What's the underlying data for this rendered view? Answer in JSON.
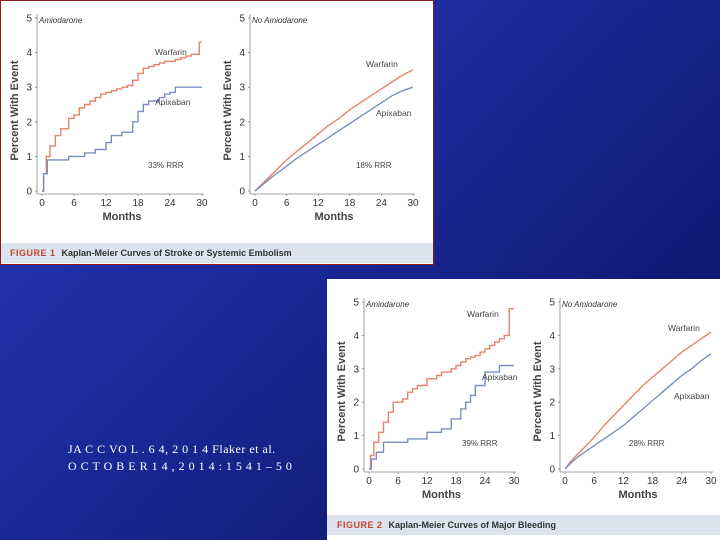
{
  "colors": {
    "warfarin": "#e8836a",
    "apixaban": "#7b8fbf",
    "caption_label": "#c8432b"
  },
  "figure1": {
    "label": "FIGURE 1",
    "title": "Kaplan-Meier Curves of Stroke or Systemic Embolism"
  },
  "figure2": {
    "label": "FIGURE 2",
    "title": "Kaplan-Meier Curves of Major Bleeding"
  },
  "citation": {
    "line1": "JA C C VO L . 6 4, 2 0 1 4 Flaker et al.",
    "line2": "O C T O B E R 1 4 , 2 0 1 4 : 1 5 4 1 – 5 0"
  },
  "chart_data": [
    {
      "type": "line",
      "figure": "figure1",
      "panel": "Amiodarone",
      "xlabel": "Months",
      "ylabel": "Percent With Event",
      "xlim": [
        0,
        30
      ],
      "ylim": [
        0,
        5
      ],
      "xticks": [
        0,
        6,
        12,
        18,
        24,
        30
      ],
      "yticks": [
        0,
        1,
        2,
        3,
        4,
        5
      ],
      "annotation": "33% RRR",
      "series": [
        {
          "name": "Warfarin",
          "step": true,
          "x": [
            0,
            0.3,
            0.8,
            1.5,
            2.5,
            3.5,
            5,
            6,
            7,
            8,
            9,
            10,
            11,
            12,
            13,
            14,
            15,
            16,
            17,
            18,
            19,
            20,
            21,
            22,
            23,
            24,
            25,
            26,
            27,
            28,
            29,
            29.5,
            30
          ],
          "y": [
            0,
            0.5,
            1.0,
            1.3,
            1.6,
            1.8,
            2.1,
            2.2,
            2.4,
            2.5,
            2.6,
            2.7,
            2.8,
            2.85,
            2.9,
            2.95,
            3.0,
            3.05,
            3.2,
            3.4,
            3.55,
            3.6,
            3.65,
            3.7,
            3.75,
            3.75,
            3.8,
            3.85,
            3.9,
            3.95,
            3.95,
            4.3,
            4.3
          ]
        },
        {
          "name": "Apixaban",
          "step": true,
          "x": [
            0,
            0.3,
            1.0,
            2.5,
            5,
            8,
            10,
            12,
            13,
            15,
            17,
            18,
            19,
            20,
            22,
            23,
            24,
            25,
            27,
            30
          ],
          "y": [
            0,
            0.5,
            0.9,
            0.9,
            1.0,
            1.1,
            1.2,
            1.4,
            1.6,
            1.7,
            2.0,
            2.3,
            2.5,
            2.6,
            2.7,
            2.8,
            2.85,
            3.0,
            3.0,
            3.0
          ]
        }
      ]
    },
    {
      "type": "line",
      "figure": "figure1",
      "panel": "No Amiodarone",
      "xlabel": "Months",
      "ylabel": "Percent With Event",
      "xlim": [
        0,
        30
      ],
      "ylim": [
        0,
        5
      ],
      "xticks": [
        0,
        6,
        12,
        18,
        24,
        30
      ],
      "yticks": [
        0,
        1,
        2,
        3,
        4,
        5
      ],
      "annotation": "18% RRR",
      "series": [
        {
          "name": "Warfarin",
          "x": [
            0,
            1,
            2,
            3,
            4,
            5,
            6,
            8,
            10,
            12,
            14,
            16,
            18,
            20,
            22,
            24,
            26,
            28,
            30
          ],
          "y": [
            0,
            0.15,
            0.3,
            0.45,
            0.6,
            0.75,
            0.9,
            1.15,
            1.4,
            1.65,
            1.9,
            2.1,
            2.35,
            2.55,
            2.75,
            2.95,
            3.15,
            3.35,
            3.5
          ]
        },
        {
          "name": "Apixaban",
          "x": [
            0,
            1,
            2,
            3,
            4,
            5,
            6,
            8,
            10,
            12,
            14,
            16,
            18,
            20,
            22,
            24,
            26,
            28,
            30
          ],
          "y": [
            0,
            0.12,
            0.25,
            0.38,
            0.5,
            0.6,
            0.72,
            0.95,
            1.15,
            1.35,
            1.55,
            1.75,
            1.95,
            2.15,
            2.35,
            2.55,
            2.75,
            2.9,
            3.0
          ]
        }
      ]
    },
    {
      "type": "line",
      "figure": "figure2",
      "panel": "Amiodarone",
      "xlabel": "Months",
      "ylabel": "Percent With Event",
      "xlim": [
        0,
        30
      ],
      "ylim": [
        0,
        5
      ],
      "xticks": [
        0,
        6,
        12,
        18,
        24,
        30
      ],
      "yticks": [
        0,
        1,
        2,
        3,
        4,
        5
      ],
      "annotation": "39% RRR",
      "series": [
        {
          "name": "Warfarin",
          "step": true,
          "x": [
            0,
            0.3,
            1,
            2,
            3,
            4,
            5,
            6,
            7,
            8,
            9,
            10,
            12,
            14,
            15,
            17,
            18,
            19,
            20,
            21,
            22,
            23,
            24,
            25,
            26,
            27,
            28,
            29,
            30
          ],
          "y": [
            0,
            0.4,
            0.8,
            1.1,
            1.4,
            1.7,
            2.0,
            2.0,
            2.1,
            2.3,
            2.4,
            2.5,
            2.7,
            2.8,
            2.9,
            3.0,
            3.1,
            3.2,
            3.3,
            3.35,
            3.4,
            3.5,
            3.6,
            3.7,
            3.8,
            3.9,
            4.0,
            4.8,
            4.8
          ]
        },
        {
          "name": "Apixaban",
          "step": true,
          "x": [
            0,
            0.5,
            1.5,
            3,
            6,
            8,
            11,
            12,
            15,
            17,
            19,
            20,
            21,
            22,
            24,
            27,
            30
          ],
          "y": [
            0,
            0.3,
            0.5,
            0.8,
            0.8,
            0.9,
            0.9,
            1.1,
            1.2,
            1.5,
            1.8,
            2.0,
            2.2,
            2.5,
            2.9,
            3.1,
            3.1
          ]
        }
      ]
    },
    {
      "type": "line",
      "figure": "figure2",
      "panel": "No Amiodarone",
      "xlabel": "Months",
      "ylabel": "Percent With Event",
      "xlim": [
        0,
        30
      ],
      "ylim": [
        0,
        5
      ],
      "xticks": [
        0,
        6,
        12,
        18,
        24,
        30
      ],
      "yticks": [
        0,
        1,
        2,
        3,
        4,
        5
      ],
      "annotation": "28% RRR",
      "series": [
        {
          "name": "Warfarin",
          "x": [
            0,
            1,
            2,
            3,
            4,
            5,
            6,
            8,
            10,
            12,
            14,
            16,
            18,
            20,
            22,
            24,
            26,
            28,
            30
          ],
          "y": [
            0,
            0.2,
            0.35,
            0.5,
            0.65,
            0.8,
            0.95,
            1.3,
            1.6,
            1.9,
            2.2,
            2.5,
            2.75,
            3.0,
            3.25,
            3.5,
            3.7,
            3.9,
            4.1
          ]
        },
        {
          "name": "Apixaban",
          "x": [
            0,
            1,
            2,
            3,
            4,
            5,
            6,
            8,
            10,
            12,
            14,
            16,
            18,
            20,
            22,
            24,
            26,
            28,
            30
          ],
          "y": [
            0,
            0.15,
            0.28,
            0.4,
            0.5,
            0.6,
            0.7,
            0.9,
            1.1,
            1.3,
            1.55,
            1.8,
            2.05,
            2.3,
            2.55,
            2.8,
            3.0,
            3.25,
            3.45
          ]
        }
      ]
    }
  ]
}
